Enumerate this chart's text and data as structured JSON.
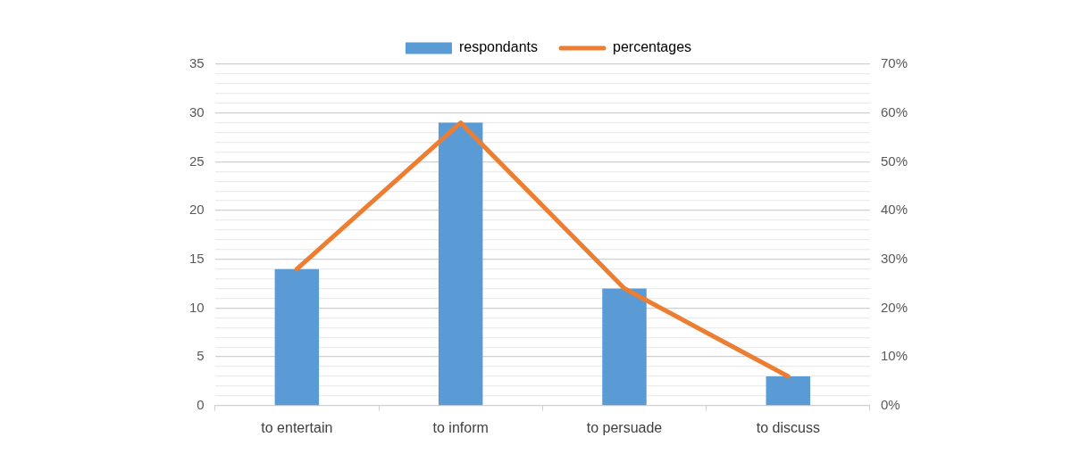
{
  "chart_data": {
    "type": "bar",
    "categories": [
      "to entertain",
      "to inform",
      "to persuade",
      "to discuss"
    ],
    "series": [
      {
        "name": "respondants",
        "color": "#5b9bd5",
        "values": [
          14,
          29,
          12,
          3
        ]
      },
      {
        "name": "percentages",
        "type": "line",
        "axis": "y2",
        "color": "#ed7d31",
        "marker": "none",
        "values": [
          28,
          58,
          24,
          6
        ]
      }
    ],
    "ylim": [
      0,
      35
    ],
    "yticks": [
      0,
      {
        "value": 1,
        "label": null
      },
      {
        "value": 2,
        "label": null
      },
      {
        "value": 3,
        "label": null
      },
      {
        "value": 4,
        "label": null
      },
      5,
      {
        "value": 6,
        "label": null
      },
      {
        "value": 7,
        "label": null
      },
      {
        "value": 8,
        "label": null
      },
      {
        "value": 9,
        "label": null
      },
      10,
      {
        "value": 11,
        "label": null
      },
      {
        "value": 12,
        "label": null
      },
      {
        "value": 13,
        "label": null
      },
      {
        "value": 14,
        "label": null
      },
      15,
      {
        "value": 16,
        "label": null
      },
      {
        "value": 17,
        "label": null
      },
      {
        "value": 18,
        "label": null
      },
      {
        "value": 19,
        "label": null
      },
      20,
      {
        "value": 21,
        "label": null
      },
      {
        "value": 22,
        "label": null
      },
      {
        "value": 23,
        "label": null
      },
      {
        "value": 24,
        "label": null
      },
      25,
      {
        "value": 26,
        "label": null
      },
      {
        "value": 27,
        "label": null
      },
      {
        "value": 28,
        "label": null
      },
      {
        "value": 29,
        "label": null
      },
      30,
      {
        "value": 31,
        "label": null
      },
      {
        "value": 32,
        "label": null
      },
      {
        "value": 33,
        "label": null
      },
      {
        "value": 34,
        "label": null
      },
      35
    ],
    "y2lim": [
      0,
      70
    ],
    "y2ticks": [
      {
        "value": 0,
        "label": "0%"
      },
      {
        "value": 10,
        "label": "10%"
      },
      {
        "value": 20,
        "label": "20%"
      },
      {
        "value": 30,
        "label": "30%"
      },
      {
        "value": 40,
        "label": "40%"
      },
      {
        "value": 50,
        "label": "50%"
      },
      {
        "value": 60,
        "label": "60%"
      },
      {
        "value": 70,
        "label": "70%"
      }
    ],
    "grid": "y",
    "legend": "top"
  }
}
